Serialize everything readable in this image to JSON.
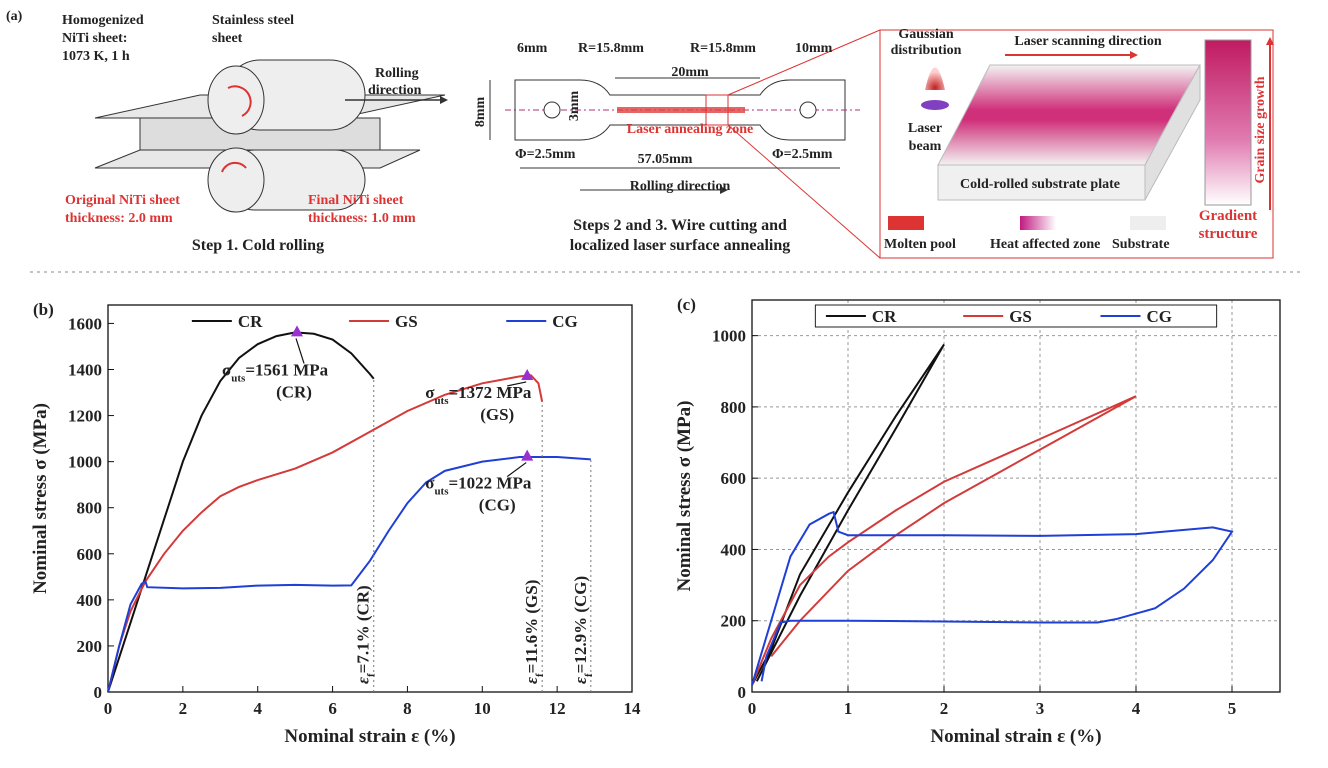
{
  "panel_a": {
    "label": "(a)",
    "step1": {
      "sheet": [
        "Homogenized",
        "NiTi sheet:",
        "1073 K, 1 h"
      ],
      "steel": [
        "Stainless steel",
        "sheet"
      ],
      "rolling": [
        "Rolling",
        "direction"
      ],
      "original": [
        "Original NiTi sheet",
        "thickness: 2.0 mm"
      ],
      "final": [
        "Final NiTi sheet",
        "thickness: 1.0 mm"
      ],
      "caption": "Step 1. Cold rolling"
    },
    "step2": {
      "w6": "6mm",
      "r_left": "R=15.8mm",
      "r_right": "R=15.8mm",
      "w10": "10mm",
      "gauge": "20mm",
      "height": "8mm",
      "width": "3mm",
      "phi_left": "Φ=2.5mm",
      "phi_right": "Φ=2.5mm",
      "length": "57.05mm",
      "zone": "Laser annealing zone",
      "rolling": "Rolling direction",
      "caption": [
        "Steps 2 and 3. Wire cutting and",
        "localized laser surface annealing"
      ]
    },
    "step3": {
      "gaussian": [
        "Gaussian",
        "distribution"
      ],
      "scan": "Laser scanning direction",
      "beam": [
        "Laser",
        "beam"
      ],
      "plate": "Cold-rolled substrate plate",
      "growth": "Grain size growth",
      "gradient": [
        "Gradient",
        "structure"
      ],
      "legend": [
        "Molten pool",
        "Heat affected zone",
        "Substrate"
      ]
    }
  },
  "chart_data": [
    {
      "type": "line",
      "panel_label": "(b)",
      "xlabel": "Nominal strain ε (%)",
      "ylabel": "Nominal stress σ (MPa)",
      "xlim": [
        0,
        14
      ],
      "xticks": [
        0,
        2,
        4,
        6,
        8,
        10,
        12,
        14
      ],
      "ylim": [
        0,
        1680
      ],
      "yticks": [
        0,
        200,
        400,
        600,
        800,
        1000,
        1200,
        1400,
        1600
      ],
      "grid": false,
      "legend_box": false,
      "marker_color": "#9b30d0",
      "series": [
        {
          "name": "CR",
          "color": "#111111",
          "x": [
            0,
            0.3,
            0.6,
            1,
            1.5,
            2,
            2.5,
            3,
            3.5,
            4,
            4.5,
            5,
            5.5,
            6,
            6.5,
            7,
            7.1
          ],
          "values": [
            0,
            150,
            300,
            500,
            750,
            1000,
            1200,
            1350,
            1450,
            1510,
            1545,
            1561,
            1555,
            1530,
            1470,
            1380,
            1360
          ]
        },
        {
          "name": "GS",
          "color": "#d33a3a",
          "x": [
            0,
            0.3,
            0.6,
            1,
            1.5,
            2,
            2.5,
            3,
            3.5,
            4,
            5,
            6,
            7,
            8,
            9,
            10,
            11,
            11.3,
            11.5,
            11.6
          ],
          "values": [
            0,
            200,
            350,
            480,
            600,
            700,
            780,
            850,
            890,
            920,
            970,
            1040,
            1130,
            1220,
            1290,
            1340,
            1370,
            1375,
            1340,
            1260
          ]
        },
        {
          "name": "CG",
          "color": "#1f3fd6",
          "x": [
            0,
            0.3,
            0.6,
            0.9,
            1,
            1.05,
            2,
            3,
            4,
            5,
            6,
            6.5,
            7,
            7.5,
            8,
            8.5,
            9,
            10,
            11,
            12,
            12.9
          ],
          "values": [
            0,
            200,
            380,
            470,
            480,
            455,
            450,
            452,
            462,
            465,
            462,
            463,
            570,
            700,
            820,
            910,
            960,
            1000,
            1020,
            1020,
            1010
          ]
        }
      ],
      "peaks": [
        {
          "x": 5.05,
          "y": 1561,
          "symbol": "σ",
          "sub": "uts",
          "text": "=1561 MPa",
          "tag": "(CR)"
        },
        {
          "x": 11.2,
          "y": 1372,
          "symbol": "σ",
          "sub": "uts",
          "text": "=1372 MPa",
          "tag": "(GS)"
        },
        {
          "x": 11.2,
          "y": 1022,
          "symbol": "σ",
          "sub": "uts",
          "text": "=1022 MPa",
          "tag": "(CG)"
        }
      ],
      "fracture": [
        {
          "x": 7.1,
          "symbol": "ε",
          "sub": "f",
          "text": "=7.1% (CR)"
        },
        {
          "x": 11.6,
          "symbol": "ε",
          "sub": "f",
          "text": "=11.6% (GS)"
        },
        {
          "x": 12.9,
          "symbol": "ε",
          "sub": "f",
          "text": "=12.9% (CG)"
        }
      ]
    },
    {
      "type": "line",
      "panel_label": "(c)",
      "xlabel": "Nominal strain ε (%)",
      "ylabel": "Nominal stress σ (MPa)",
      "xlim": [
        0,
        5.5
      ],
      "xticks": [
        0,
        1,
        2,
        3,
        4,
        5
      ],
      "ylim": [
        0,
        1100
      ],
      "yticks": [
        0,
        200,
        400,
        600,
        800,
        1000
      ],
      "grid": true,
      "legend_box": true,
      "series": [
        {
          "name": "CR",
          "color": "#111111",
          "x": [
            0,
            0.2,
            0.5,
            1,
            1.5,
            2,
            1.5,
            1,
            0.5,
            0.2,
            0.05
          ],
          "values": [
            20,
            120,
            330,
            560,
            775,
            975,
            740,
            510,
            270,
            110,
            30
          ]
        },
        {
          "name": "GS",
          "color": "#d33a3a",
          "x": [
            0,
            0.2,
            0.5,
            0.8,
            1,
            1.5,
            2,
            3,
            4,
            3,
            2,
            1.5,
            1,
            0.5,
            0.2
          ],
          "values": [
            20,
            150,
            300,
            380,
            420,
            510,
            590,
            710,
            830,
            680,
            530,
            440,
            340,
            200,
            100
          ]
        },
        {
          "name": "CG",
          "color": "#1f3fd6",
          "x": [
            0,
            0.2,
            0.4,
            0.6,
            0.8,
            0.85,
            0.9,
            1,
            2,
            3,
            4,
            4.8,
            5,
            4.8,
            4.5,
            4.2,
            3.8,
            3.6,
            3,
            2,
            1,
            0.4,
            0.3,
            0.15,
            0.1
          ],
          "values": [
            20,
            200,
            380,
            470,
            500,
            505,
            450,
            440,
            440,
            438,
            443,
            462,
            450,
            370,
            290,
            235,
            205,
            195,
            195,
            198,
            200,
            200,
            195,
            100,
            30
          ]
        }
      ]
    }
  ]
}
